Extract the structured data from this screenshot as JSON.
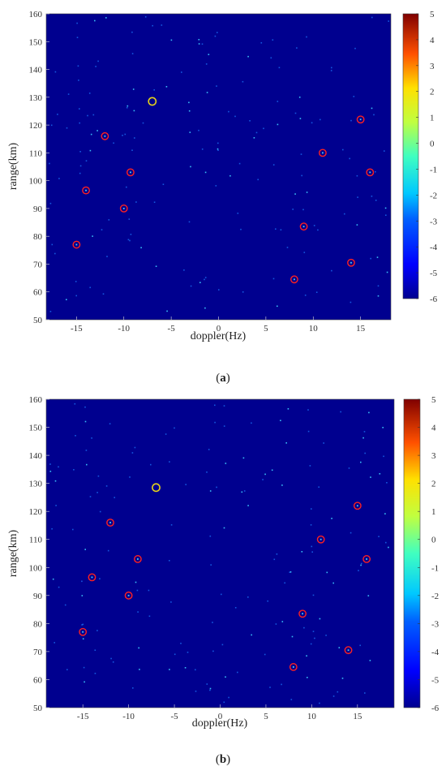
{
  "colors": {
    "background_fill": "#00008f",
    "clutter": "#3fd0ff",
    "target_marker": "#ff2020",
    "reference_marker": "#e6d21a"
  },
  "panels": [
    {
      "caption_open": "(",
      "caption_letter": "a",
      "caption_close": ")"
    },
    {
      "caption_open": "(",
      "caption_letter": "b",
      "caption_close": ")"
    }
  ],
  "chart_data": [
    {
      "type": "heatmap",
      "title": "",
      "xlabel": "doppler(Hz)",
      "ylabel": "range(km)",
      "xlim": [
        -18.2,
        18.2
      ],
      "ylim": [
        50,
        160
      ],
      "xticks": [
        -15,
        -10,
        -5,
        0,
        5,
        10,
        15
      ],
      "yticks": [
        50,
        60,
        70,
        80,
        90,
        100,
        110,
        120,
        130,
        140,
        150,
        160
      ],
      "colorbar": {
        "range": [
          -6,
          5
        ],
        "ticks": [
          5,
          4,
          3,
          2,
          1,
          0,
          -1,
          -2,
          -3,
          -4,
          -5,
          -6
        ],
        "colormap": "jet"
      },
      "grid": false,
      "markers_red": [
        {
          "x": -15,
          "y": 77
        },
        {
          "x": -14,
          "y": 96.5
        },
        {
          "x": -12,
          "y": 116
        },
        {
          "x": -9.3,
          "y": 103
        },
        {
          "x": -10,
          "y": 90
        },
        {
          "x": 8,
          "y": 64.5
        },
        {
          "x": 9,
          "y": 83.5
        },
        {
          "x": 11,
          "y": 110
        },
        {
          "x": 14,
          "y": 70.5
        },
        {
          "x": 15,
          "y": 122
        },
        {
          "x": 16,
          "y": 103
        }
      ],
      "marker_yellow": {
        "x": -7,
        "y": 128.5
      }
    },
    {
      "type": "heatmap",
      "title": "",
      "xlabel": "doppler(Hz)",
      "ylabel": "range(km)",
      "xlim": [
        -19,
        19
      ],
      "ylim": [
        50,
        160
      ],
      "xticks": [
        -15,
        -10,
        -5,
        0,
        5,
        10,
        15
      ],
      "yticks": [
        50,
        60,
        70,
        80,
        90,
        100,
        110,
        120,
        130,
        140,
        150,
        160
      ],
      "colorbar": {
        "range": [
          -6,
          5
        ],
        "ticks": [
          5,
          4,
          3,
          2,
          1,
          0,
          -1,
          -2,
          -3,
          -4,
          -5,
          -6
        ],
        "colormap": "jet"
      },
      "grid": false,
      "markers_red": [
        {
          "x": -15,
          "y": 77
        },
        {
          "x": -14,
          "y": 96.5
        },
        {
          "x": -12,
          "y": 116
        },
        {
          "x": -9,
          "y": 103
        },
        {
          "x": -10,
          "y": 90
        },
        {
          "x": 8,
          "y": 64.5
        },
        {
          "x": 9,
          "y": 83.5
        },
        {
          "x": 11,
          "y": 110
        },
        {
          "x": 14,
          "y": 70.5
        },
        {
          "x": 15,
          "y": 122
        },
        {
          "x": 16,
          "y": 103
        }
      ],
      "marker_yellow": {
        "x": -7,
        "y": 128.5
      }
    }
  ]
}
